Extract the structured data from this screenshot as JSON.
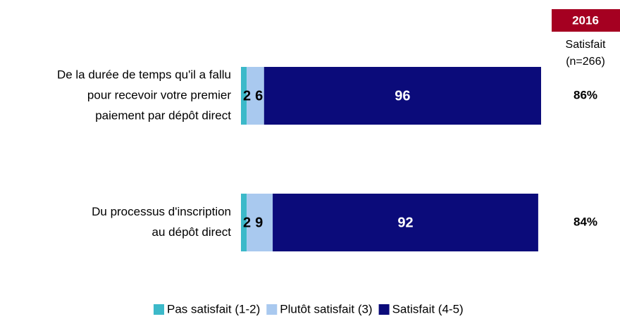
{
  "chart_data": {
    "type": "stacked-bar",
    "categories": [
      [
        "De la durée de temps qu'il a fallu",
        "pour recevoir votre premier",
        "paiement par dépôt direct"
      ],
      [
        "Du processus d'inscription",
        "au dépôt direct"
      ]
    ],
    "series": [
      {
        "name": "Pas satisfait (1-2)",
        "color": "#3cb9c9",
        "values": [
          2,
          2
        ]
      },
      {
        "name": "Plutôt satisfait (3)",
        "color": "#a9c9ef",
        "values": [
          6,
          9
        ]
      },
      {
        "name": "Satisfait (4-5)",
        "color": "#0b0b7a",
        "values": [
          96,
          92
        ]
      }
    ],
    "legend": "bottom",
    "summary": {
      "header": "2016",
      "title": "Satisfait",
      "subtitle": "(n=266)",
      "header_color": "#a50021",
      "values": [
        86,
        84
      ],
      "value_labels": [
        "86%",
        "84%"
      ]
    }
  }
}
